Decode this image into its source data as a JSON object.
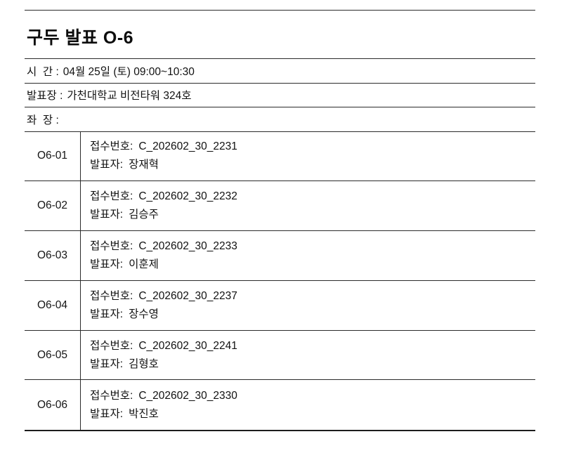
{
  "page": {
    "title": "구두 발표 O-6"
  },
  "session_info": {
    "rows": [
      {
        "label": "시  간 :",
        "value": "04월 25일 (토) 09:00~10:30"
      },
      {
        "label": "발표장 :",
        "value": "가천대학교 비전타워 324호"
      },
      {
        "label": "좌  장 :",
        "value": ""
      }
    ]
  },
  "schedule": {
    "reg_label": "접수번호:",
    "presenter_label": "발표자:",
    "rows": [
      {
        "id": "O6-01",
        "reg_no": "C_202602_30_2231",
        "presenter": "장재혁"
      },
      {
        "id": "O6-02",
        "reg_no": "C_202602_30_2232",
        "presenter": "김승주"
      },
      {
        "id": "O6-03",
        "reg_no": "C_202602_30_2233",
        "presenter": "이훈제"
      },
      {
        "id": "O6-04",
        "reg_no": "C_202602_30_2237",
        "presenter": "장수영"
      },
      {
        "id": "O6-05",
        "reg_no": "C_202602_30_2241",
        "presenter": "김형호"
      },
      {
        "id": "O6-06",
        "reg_no": "C_202602_30_2330",
        "presenter": "박진호"
      }
    ]
  }
}
